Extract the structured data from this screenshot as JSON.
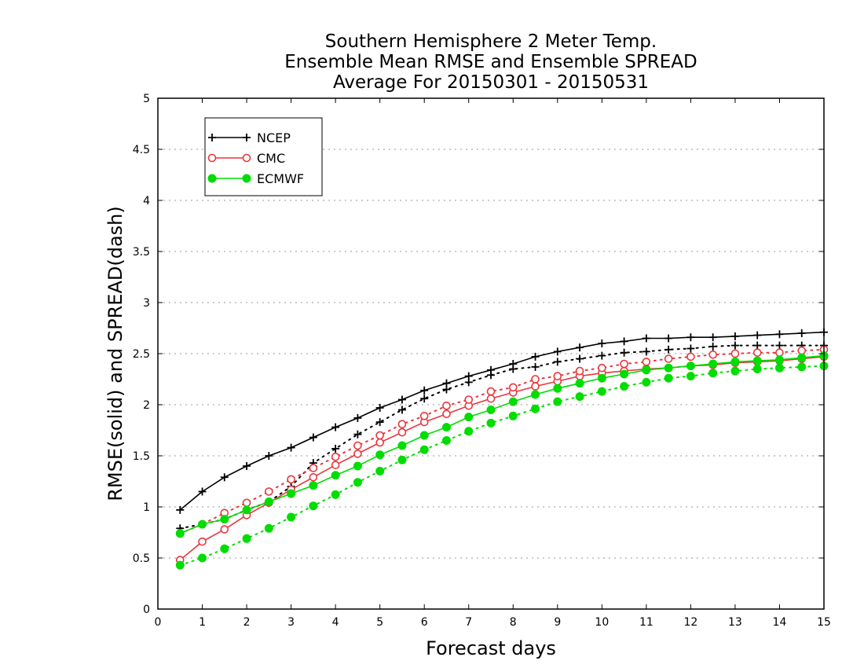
{
  "chart_data": {
    "type": "line",
    "title": [
      "Southern Hemisphere 2 Meter Temp.",
      "Ensemble Mean RMSE and Ensemble SPREAD",
      "Average For 20150301 - 20150531"
    ],
    "xlabel": "Forecast days",
    "ylabel": "RMSE(solid) and SPREAD(dash)",
    "xlim": [
      0,
      15
    ],
    "ylim": [
      0,
      5
    ],
    "xticks": [
      "0",
      "1",
      "2",
      "3",
      "4",
      "5",
      "6",
      "7",
      "8",
      "9",
      "10",
      "11",
      "12",
      "13",
      "14",
      "15"
    ],
    "yticks": [
      "0",
      "0.5",
      "1",
      "1.5",
      "2",
      "2.5",
      "3",
      "3.5",
      "4",
      "4.5",
      "5"
    ],
    "grid": "horizontal dotted",
    "legend_position": "top-left",
    "x": [
      0.5,
      1,
      1.5,
      2,
      2.5,
      3,
      3.5,
      4,
      4.5,
      5,
      5.5,
      6,
      6.5,
      7,
      7.5,
      8,
      8.5,
      9,
      9.5,
      10,
      10.5,
      11,
      11.5,
      12,
      12.5,
      13,
      13.5,
      14,
      14.5,
      15
    ],
    "series": [
      {
        "name": "NCEP",
        "metric": "RMSE",
        "line_style": "solid",
        "color": "#000000",
        "marker": "plus",
        "values": [
          0.97,
          1.15,
          1.29,
          1.4,
          1.5,
          1.58,
          1.68,
          1.78,
          1.87,
          1.97,
          2.05,
          2.14,
          2.21,
          2.28,
          2.34,
          2.4,
          2.47,
          2.52,
          2.56,
          2.6,
          2.62,
          2.65,
          2.65,
          2.66,
          2.66,
          2.67,
          2.68,
          2.69,
          2.7,
          2.71
        ]
      },
      {
        "name": "NCEP",
        "metric": "SPREAD",
        "line_style": "dash",
        "color": "#000000",
        "marker": "plus",
        "values": [
          0.79,
          0.83,
          0.88,
          0.97,
          1.05,
          1.2,
          1.43,
          1.57,
          1.71,
          1.83,
          1.95,
          2.06,
          2.15,
          2.22,
          2.29,
          2.35,
          2.37,
          2.42,
          2.45,
          2.48,
          2.51,
          2.52,
          2.54,
          2.55,
          2.57,
          2.58,
          2.58,
          2.58,
          2.58,
          2.58
        ]
      },
      {
        "name": "CMC",
        "metric": "RMSE",
        "line_style": "solid",
        "color": "#e8383d",
        "marker": "open-circle",
        "values": [
          0.48,
          0.66,
          0.78,
          0.92,
          1.04,
          1.17,
          1.29,
          1.41,
          1.52,
          1.63,
          1.73,
          1.83,
          1.91,
          1.99,
          2.06,
          2.12,
          2.18,
          2.23,
          2.28,
          2.31,
          2.33,
          2.35,
          2.36,
          2.38,
          2.39,
          2.41,
          2.42,
          2.43,
          2.45,
          2.47
        ]
      },
      {
        "name": "CMC",
        "metric": "SPREAD",
        "line_style": "dash",
        "color": "#e8383d",
        "marker": "open-circle",
        "values": [
          0.74,
          0.83,
          0.94,
          1.04,
          1.15,
          1.27,
          1.38,
          1.49,
          1.6,
          1.7,
          1.81,
          1.89,
          1.99,
          2.05,
          2.13,
          2.17,
          2.25,
          2.28,
          2.33,
          2.36,
          2.4,
          2.42,
          2.45,
          2.47,
          2.49,
          2.5,
          2.51,
          2.51,
          2.53,
          2.54
        ]
      },
      {
        "name": "ECMWF",
        "metric": "RMSE",
        "line_style": "solid",
        "color": "#00dd00",
        "marker": "filled-circle",
        "values": [
          0.74,
          0.83,
          0.88,
          0.97,
          1.05,
          1.13,
          1.21,
          1.31,
          1.4,
          1.51,
          1.6,
          1.7,
          1.78,
          1.88,
          1.95,
          2.03,
          2.1,
          2.16,
          2.21,
          2.26,
          2.3,
          2.34,
          2.36,
          2.38,
          2.4,
          2.42,
          2.43,
          2.44,
          2.46,
          2.48
        ]
      },
      {
        "name": "ECMWF",
        "metric": "SPREAD",
        "line_style": "dash",
        "color": "#00dd00",
        "marker": "filled-circle",
        "values": [
          0.43,
          0.5,
          0.59,
          0.69,
          0.79,
          0.9,
          1.01,
          1.12,
          1.24,
          1.35,
          1.46,
          1.56,
          1.65,
          1.74,
          1.82,
          1.89,
          1.96,
          2.03,
          2.08,
          2.13,
          2.18,
          2.22,
          2.26,
          2.28,
          2.31,
          2.33,
          2.35,
          2.36,
          2.37,
          2.38
        ]
      }
    ],
    "legend": [
      {
        "label": "NCEP",
        "color": "#000000",
        "marker": "plus"
      },
      {
        "label": "CMC",
        "color": "#e8383d",
        "marker": "open-circle"
      },
      {
        "label": "ECMWF",
        "color": "#00dd00",
        "marker": "filled-circle"
      }
    ]
  }
}
